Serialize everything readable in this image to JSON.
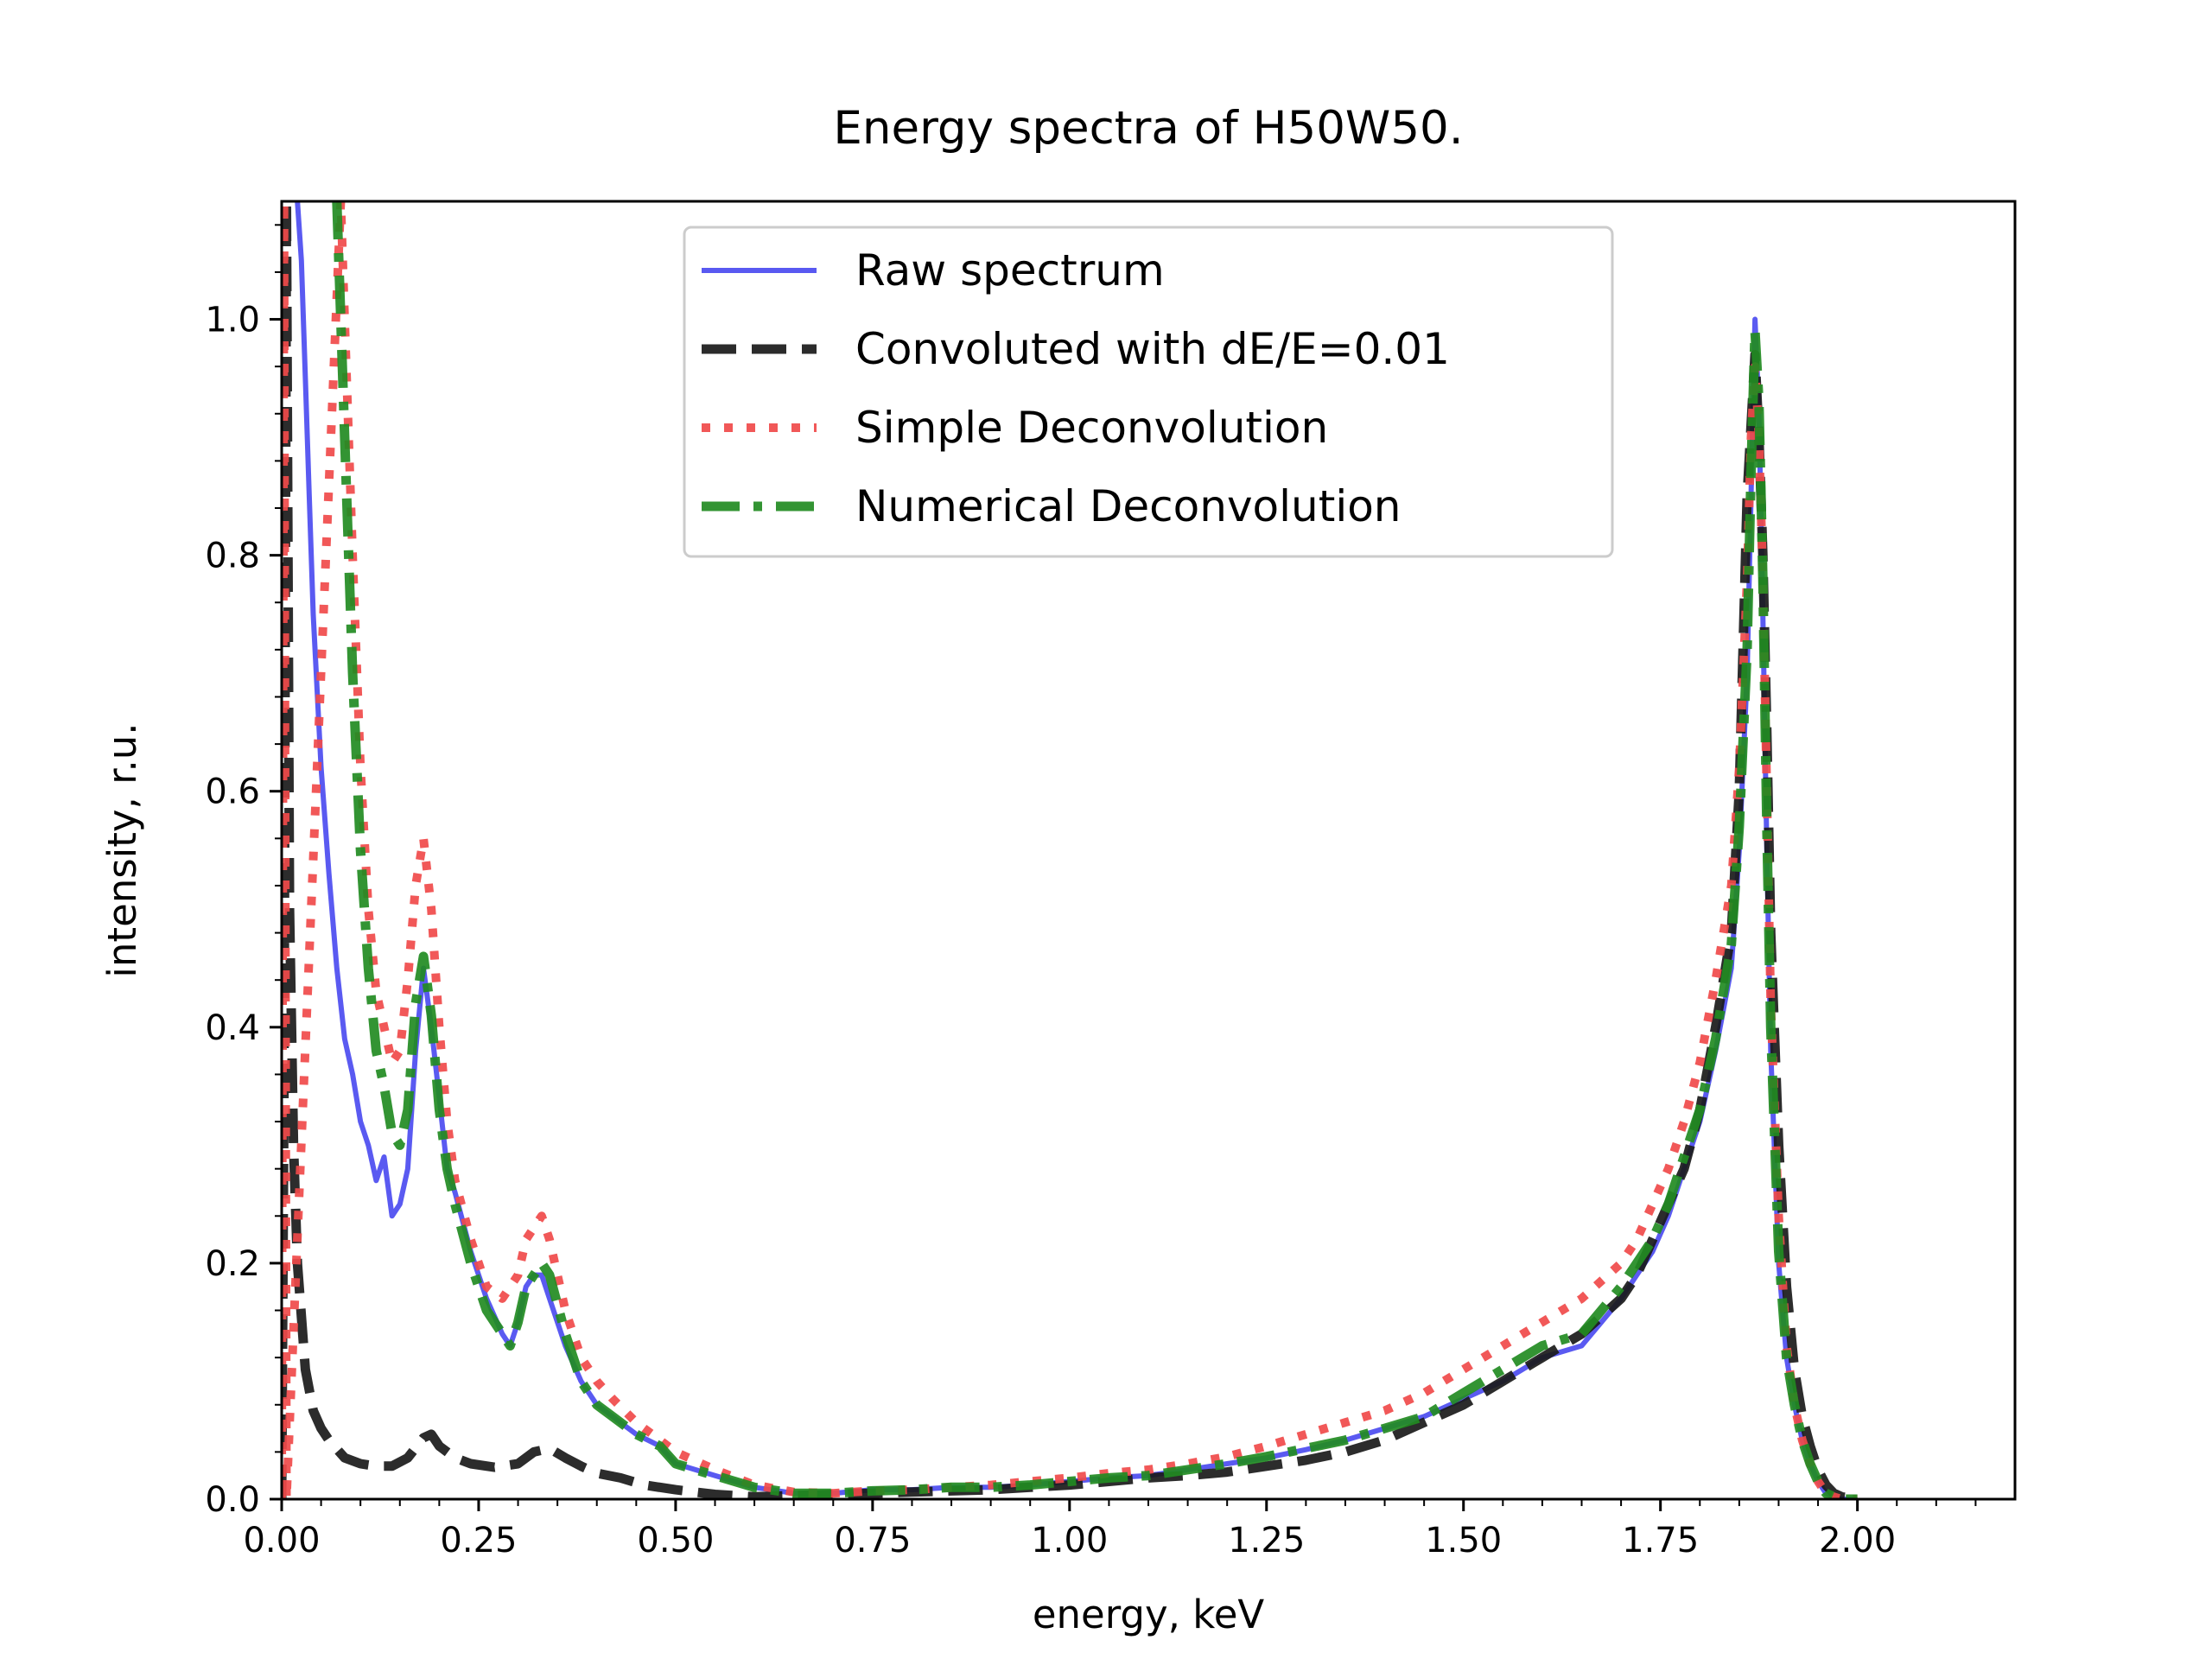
{
  "chart_data": {
    "type": "line",
    "title": "Energy spectra of H50W50.",
    "xlabel": "energy, keV",
    "ylabel": "intensity, r.u.",
    "xlim": [
      0.0,
      2.2
    ],
    "ylim": [
      0.0,
      1.1
    ],
    "xticks": [
      "0.00",
      "0.25",
      "0.50",
      "0.75",
      "1.00",
      "1.25",
      "1.50",
      "1.75",
      "2.00"
    ],
    "yticks": [
      "0.0",
      "0.2",
      "0.4",
      "0.6",
      "0.8",
      "1.0"
    ],
    "grid": false,
    "legend_position": "upper center",
    "series": [
      {
        "name": "Raw spectrum",
        "color": "#4c4cf0",
        "style": "solid",
        "x": [
          0.02,
          0.025,
          0.03,
          0.035,
          0.04,
          0.05,
          0.06,
          0.07,
          0.08,
          0.09,
          0.1,
          0.11,
          0.12,
          0.13,
          0.14,
          0.15,
          0.16,
          0.17,
          0.18,
          0.19,
          0.2,
          0.21,
          0.22,
          0.24,
          0.26,
          0.28,
          0.29,
          0.3,
          0.31,
          0.32,
          0.33,
          0.34,
          0.36,
          0.38,
          0.4,
          0.42,
          0.45,
          0.48,
          0.5,
          0.55,
          0.6,
          0.65,
          0.7,
          0.75,
          0.8,
          0.85,
          0.9,
          0.95,
          1.0,
          1.05,
          1.1,
          1.15,
          1.2,
          1.25,
          1.3,
          1.35,
          1.4,
          1.45,
          1.5,
          1.55,
          1.6,
          1.65,
          1.7,
          1.72,
          1.74,
          1.76,
          1.78,
          1.8,
          1.82,
          1.84,
          1.85,
          1.86,
          1.865,
          1.87,
          1.875,
          1.88,
          1.885,
          1.89,
          1.9,
          1.91,
          1.92,
          1.93,
          1.94,
          1.95,
          1.96,
          1.97,
          1.98,
          2.0
        ],
        "y": [
          1.1,
          1.05,
          0.95,
          0.85,
          0.75,
          0.62,
          0.53,
          0.45,
          0.39,
          0.36,
          0.32,
          0.3,
          0.27,
          0.29,
          0.24,
          0.25,
          0.28,
          0.38,
          0.45,
          0.4,
          0.34,
          0.28,
          0.26,
          0.21,
          0.17,
          0.14,
          0.13,
          0.15,
          0.18,
          0.19,
          0.19,
          0.17,
          0.13,
          0.1,
          0.08,
          0.07,
          0.055,
          0.045,
          0.03,
          0.02,
          0.01,
          0.005,
          0.005,
          0.008,
          0.008,
          0.01,
          0.01,
          0.012,
          0.015,
          0.018,
          0.02,
          0.025,
          0.03,
          0.035,
          0.042,
          0.05,
          0.06,
          0.07,
          0.085,
          0.1,
          0.12,
          0.13,
          0.17,
          0.19,
          0.21,
          0.24,
          0.28,
          0.32,
          0.38,
          0.45,
          0.55,
          0.7,
          0.85,
          1.0,
          0.92,
          0.75,
          0.55,
          0.38,
          0.2,
          0.12,
          0.08,
          0.05,
          0.03,
          0.015,
          0.005,
          0.002,
          0.0,
          0.0
        ]
      },
      {
        "name": "Convoluted with dE/E=0.01",
        "color": "#1a1a1a",
        "style": "dashed",
        "x": [
          0.0,
          0.003,
          0.006,
          0.01,
          0.015,
          0.02,
          0.03,
          0.04,
          0.05,
          0.06,
          0.08,
          0.1,
          0.12,
          0.14,
          0.16,
          0.18,
          0.19,
          0.2,
          0.22,
          0.24,
          0.27,
          0.3,
          0.32,
          0.34,
          0.36,
          0.38,
          0.4,
          0.43,
          0.46,
          0.5,
          0.55,
          0.6,
          0.65,
          0.7,
          0.75,
          0.8,
          0.85,
          0.9,
          0.95,
          1.0,
          1.05,
          1.1,
          1.15,
          1.2,
          1.25,
          1.3,
          1.35,
          1.4,
          1.45,
          1.5,
          1.55,
          1.6,
          1.65,
          1.7,
          1.72,
          1.74,
          1.76,
          1.78,
          1.8,
          1.82,
          1.84,
          1.85,
          1.86,
          1.87,
          1.875,
          1.88,
          1.885,
          1.89,
          1.9,
          1.91,
          1.92,
          1.93,
          1.94,
          1.95,
          1.96,
          1.97,
          1.98,
          2.0
        ],
        "y": [
          0.0,
          0.35,
          1.1,
          0.5,
          0.3,
          0.2,
          0.11,
          0.075,
          0.06,
          0.05,
          0.035,
          0.03,
          0.028,
          0.028,
          0.035,
          0.052,
          0.055,
          0.045,
          0.035,
          0.03,
          0.027,
          0.03,
          0.04,
          0.043,
          0.035,
          0.028,
          0.022,
          0.018,
          0.012,
          0.008,
          0.004,
          0.002,
          0.003,
          0.004,
          0.005,
          0.006,
          0.007,
          0.008,
          0.01,
          0.012,
          0.015,
          0.018,
          0.02,
          0.023,
          0.028,
          0.033,
          0.04,
          0.05,
          0.065,
          0.08,
          0.1,
          0.12,
          0.14,
          0.17,
          0.19,
          0.22,
          0.25,
          0.28,
          0.33,
          0.4,
          0.48,
          0.6,
          0.85,
          0.97,
          0.9,
          0.8,
          0.65,
          0.48,
          0.3,
          0.18,
          0.11,
          0.07,
          0.045,
          0.025,
          0.012,
          0.005,
          0.002,
          0.0
        ]
      },
      {
        "name": "Simple Deconvolution",
        "color": "#f04a4a",
        "style": "dotted",
        "x": [
          0.0,
          0.003,
          0.006,
          0.075,
          0.08,
          0.085,
          0.09,
          0.1,
          0.11,
          0.12,
          0.13,
          0.14,
          0.15,
          0.16,
          0.17,
          0.18,
          0.19,
          0.2,
          0.21,
          0.22,
          0.24,
          0.26,
          0.28,
          0.3,
          0.31,
          0.32,
          0.33,
          0.34,
          0.36,
          0.38,
          0.4,
          0.42,
          0.45,
          0.48,
          0.5,
          0.55,
          0.6,
          0.65,
          0.7,
          0.75,
          0.8,
          0.85,
          0.9,
          0.95,
          1.0,
          1.05,
          1.1,
          1.15,
          1.2,
          1.25,
          1.3,
          1.35,
          1.4,
          1.45,
          1.5,
          1.55,
          1.6,
          1.65,
          1.7,
          1.72,
          1.74,
          1.76,
          1.78,
          1.8,
          1.82,
          1.84,
          1.85,
          1.86,
          1.865,
          1.87,
          1.875,
          1.88,
          1.885,
          1.89,
          1.9,
          1.91,
          1.92,
          1.93,
          1.94,
          1.95,
          1.96,
          1.97,
          1.98,
          2.0
        ],
        "y": [
          0.0,
          1.1,
          0.0,
          1.1,
          1.0,
          0.9,
          0.8,
          0.62,
          0.5,
          0.43,
          0.4,
          0.37,
          0.38,
          0.44,
          0.52,
          0.56,
          0.5,
          0.4,
          0.32,
          0.27,
          0.22,
          0.18,
          0.17,
          0.19,
          0.22,
          0.23,
          0.24,
          0.22,
          0.16,
          0.12,
          0.1,
          0.085,
          0.065,
          0.05,
          0.04,
          0.025,
          0.012,
          0.006,
          0.005,
          0.007,
          0.008,
          0.01,
          0.012,
          0.015,
          0.018,
          0.022,
          0.025,
          0.03,
          0.036,
          0.045,
          0.055,
          0.065,
          0.075,
          0.09,
          0.11,
          0.13,
          0.15,
          0.17,
          0.2,
          0.22,
          0.25,
          0.28,
          0.32,
          0.37,
          0.44,
          0.52,
          0.62,
          0.78,
          0.9,
          0.96,
          0.9,
          0.78,
          0.6,
          0.42,
          0.24,
          0.13,
          0.08,
          0.05,
          0.03,
          0.015,
          0.005,
          0.002,
          0.0,
          0.0
        ]
      },
      {
        "name": "Numerical Deconvolution",
        "color": "#228b22",
        "style": "dashdot",
        "x": [
          0.07,
          0.075,
          0.08,
          0.085,
          0.09,
          0.1,
          0.11,
          0.12,
          0.13,
          0.14,
          0.15,
          0.16,
          0.17,
          0.18,
          0.19,
          0.2,
          0.21,
          0.22,
          0.24,
          0.26,
          0.28,
          0.29,
          0.3,
          0.31,
          0.32,
          0.33,
          0.34,
          0.36,
          0.38,
          0.4,
          0.42,
          0.45,
          0.48,
          0.5,
          0.55,
          0.6,
          0.65,
          0.7,
          0.75,
          0.8,
          0.85,
          0.9,
          0.95,
          1.0,
          1.05,
          1.1,
          1.15,
          1.2,
          1.25,
          1.3,
          1.35,
          1.4,
          1.45,
          1.5,
          1.55,
          1.6,
          1.65,
          1.7,
          1.72,
          1.74,
          1.76,
          1.78,
          1.8,
          1.82,
          1.84,
          1.85,
          1.86,
          1.865,
          1.87,
          1.875,
          1.88,
          1.885,
          1.89,
          1.9,
          1.91,
          1.92,
          1.93,
          1.94,
          1.95,
          1.96,
          1.97,
          1.98,
          2.0
        ],
        "y": [
          1.1,
          1.0,
          0.9,
          0.8,
          0.7,
          0.55,
          0.45,
          0.38,
          0.35,
          0.31,
          0.3,
          0.33,
          0.42,
          0.46,
          0.41,
          0.33,
          0.28,
          0.25,
          0.2,
          0.16,
          0.14,
          0.13,
          0.15,
          0.18,
          0.19,
          0.2,
          0.19,
          0.14,
          0.1,
          0.08,
          0.07,
          0.055,
          0.045,
          0.03,
          0.02,
          0.01,
          0.005,
          0.005,
          0.007,
          0.008,
          0.01,
          0.01,
          0.012,
          0.015,
          0.018,
          0.02,
          0.025,
          0.03,
          0.036,
          0.043,
          0.05,
          0.06,
          0.07,
          0.09,
          0.11,
          0.13,
          0.14,
          0.18,
          0.2,
          0.22,
          0.25,
          0.29,
          0.33,
          0.39,
          0.47,
          0.57,
          0.72,
          0.87,
          0.99,
          0.93,
          0.78,
          0.57,
          0.4,
          0.21,
          0.12,
          0.08,
          0.05,
          0.03,
          0.015,
          0.005,
          0.002,
          0.0,
          0.0
        ]
      }
    ]
  }
}
